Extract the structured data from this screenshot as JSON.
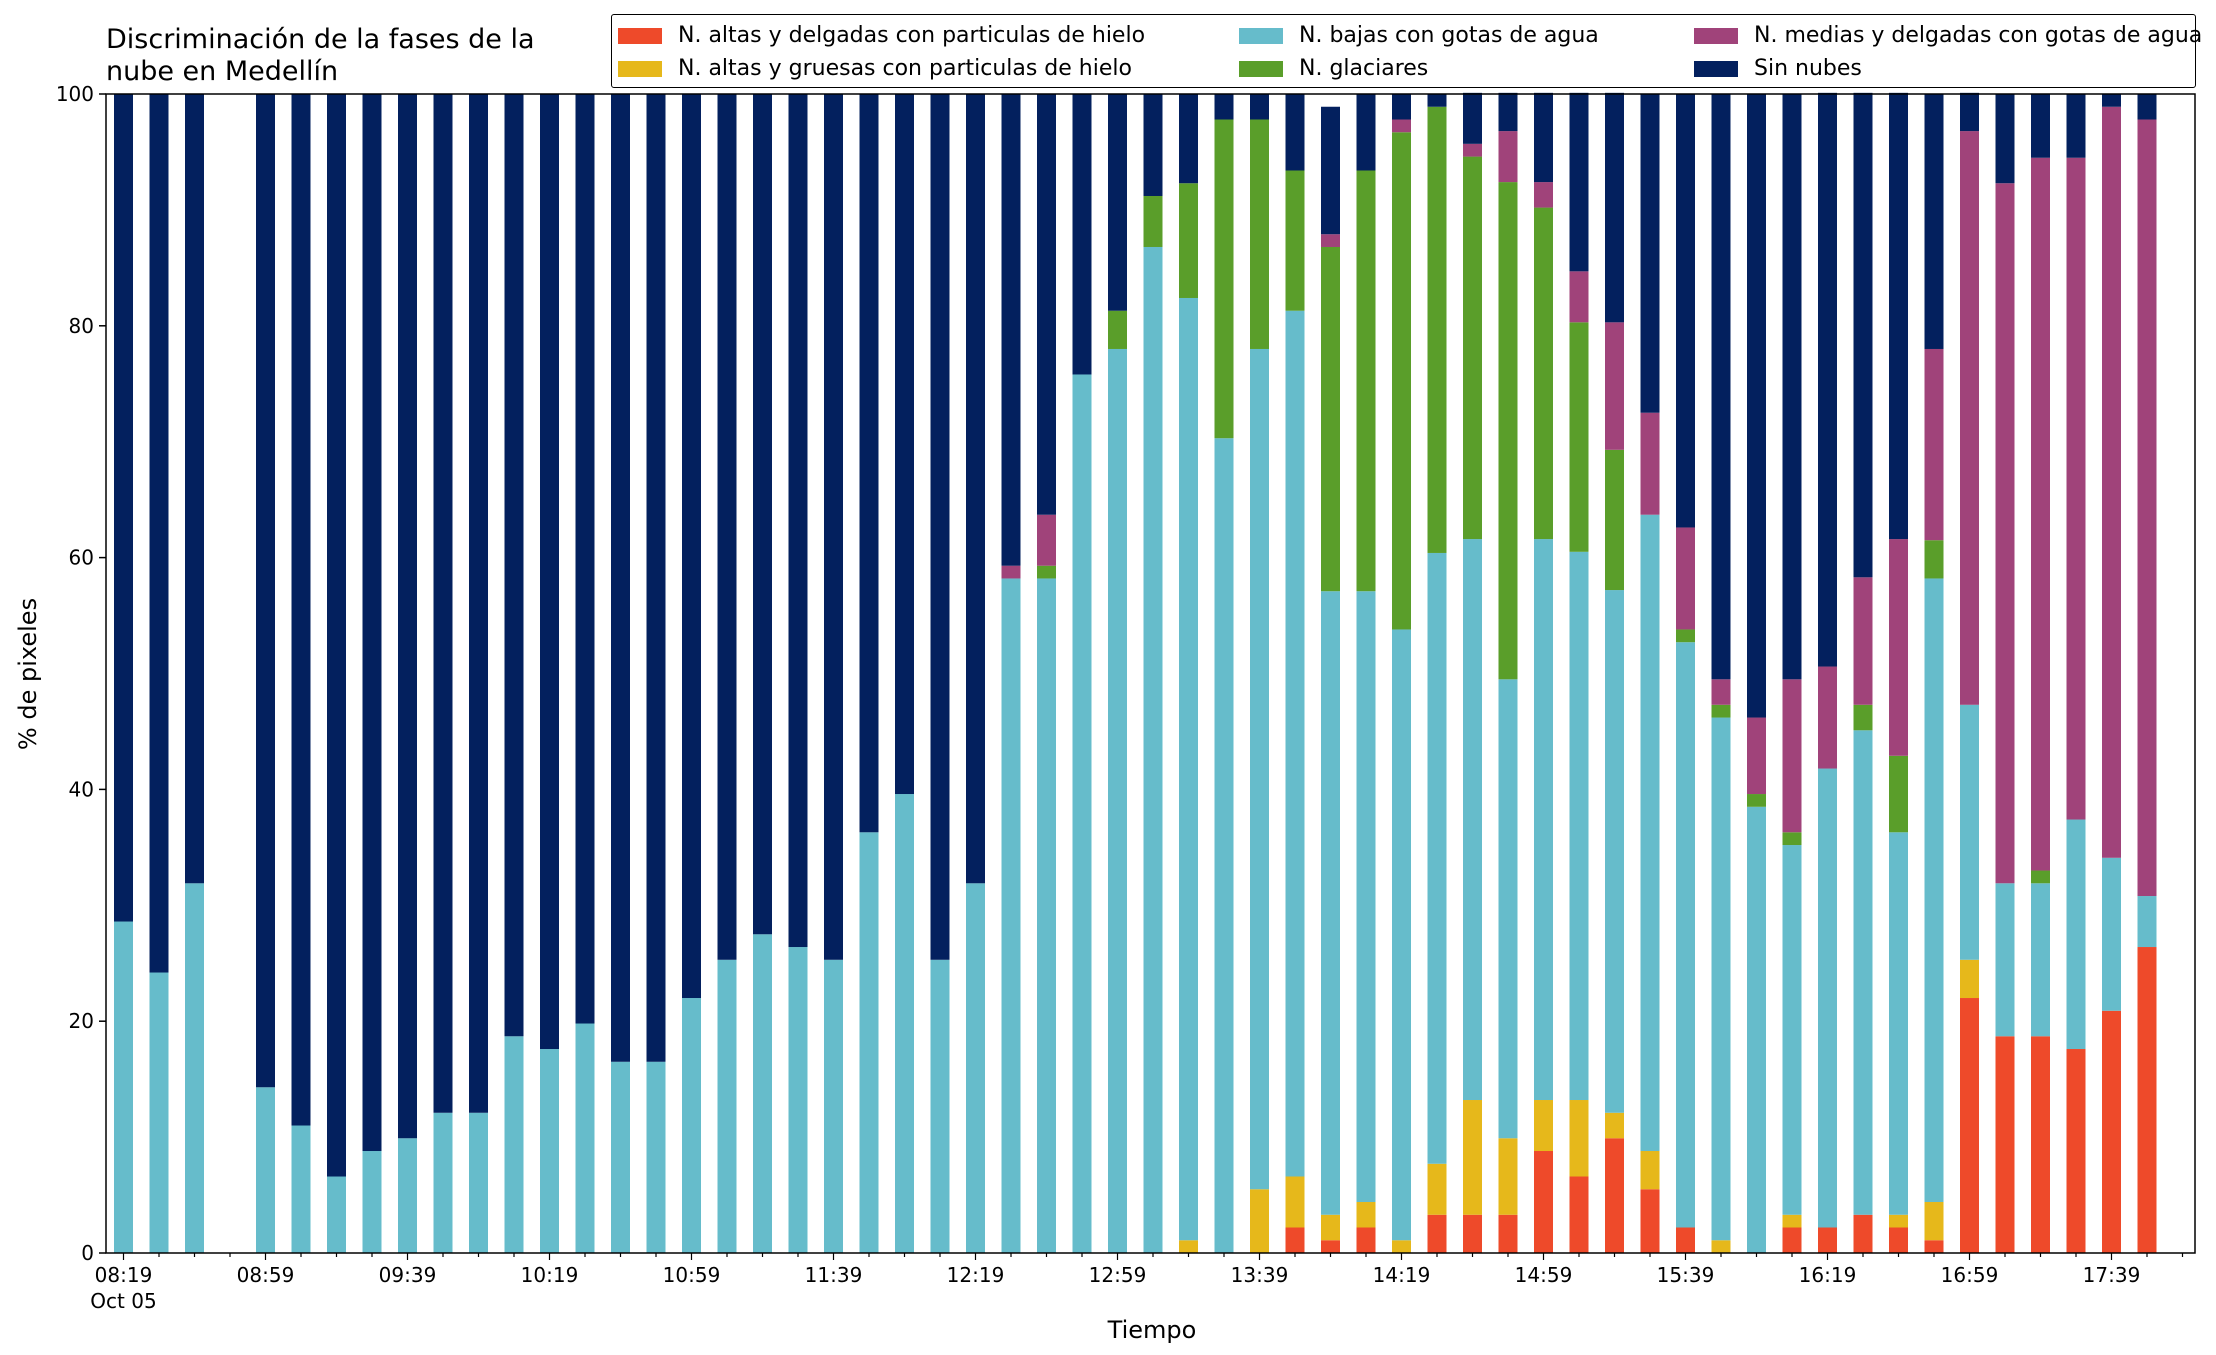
{
  "chart_data": {
    "type": "bar",
    "stacked": true,
    "title_line1": "Discriminación de la fases de la",
    "title_line2": "nube en Medellín",
    "xlabel": "Tiempo",
    "ylabel": "% de pixeles",
    "ylim": [
      0,
      100
    ],
    "yticks": [
      "0",
      "20",
      "40",
      "60",
      "80",
      "100"
    ],
    "xtick_labels": [
      "08:19",
      "08:59",
      "09:39",
      "10:19",
      "10:59",
      "11:39",
      "12:19",
      "12:59",
      "13:39",
      "14:19",
      "14:59",
      "15:39",
      "16:19",
      "16:59",
      "17:39"
    ],
    "xtick_sublabel": "Oct 05",
    "grid": false,
    "legend_position": "top-right",
    "categories": [
      "08:19",
      "08:29",
      "08:39",
      "08:49",
      "08:59",
      "09:09",
      "09:19",
      "09:29",
      "09:39",
      "09:49",
      "09:59",
      "10:09",
      "10:19",
      "10:29",
      "10:39",
      "10:49",
      "10:59",
      "11:09",
      "11:19",
      "11:29",
      "11:39",
      "11:49",
      "11:59",
      "12:09",
      "12:19",
      "12:29",
      "12:39",
      "12:49",
      "12:59",
      "13:09",
      "13:19",
      "13:29",
      "13:39",
      "13:49",
      "13:59",
      "14:09",
      "14:19",
      "14:29",
      "14:39",
      "14:49",
      "14:59",
      "15:09",
      "15:19",
      "15:29",
      "15:39",
      "15:49",
      "15:59",
      "16:09",
      "16:19",
      "16:29",
      "16:39",
      "16:49",
      "16:59",
      "17:09",
      "17:19",
      "17:29",
      "17:39",
      "17:49"
    ],
    "series": [
      {
        "name": "N. altas y delgadas con particulas de hielo",
        "color": "#ee4a2a",
        "values": [
          0,
          0,
          0,
          0,
          0,
          0,
          0,
          0,
          0,
          0,
          0,
          0,
          0,
          0,
          0,
          0,
          0,
          0,
          0,
          0,
          0,
          0,
          0,
          0,
          0,
          0,
          0,
          0,
          0,
          0,
          0,
          0,
          0,
          2.2,
          1.1,
          2.2,
          0,
          3.3,
          3.3,
          3.3,
          8.8,
          6.6,
          9.9,
          5.5,
          2.2,
          0,
          0,
          2.2,
          2.2,
          3.3,
          2.2,
          1.1,
          22,
          18.7,
          18.7,
          17.6,
          20.9,
          26.4
        ]
      },
      {
        "name": "N. altas y gruesas con particulas de hielo",
        "color": "#e6b81b",
        "values": [
          0,
          0,
          0,
          0,
          0,
          0,
          0,
          0,
          0,
          0,
          0,
          0,
          0,
          0,
          0,
          0,
          0,
          0,
          0,
          0,
          0,
          0,
          0,
          0,
          0,
          0,
          0,
          0,
          0,
          0,
          1.1,
          0,
          5.5,
          4.4,
          2.2,
          2.2,
          1.1,
          4.4,
          9.9,
          6.6,
          4.4,
          6.6,
          2.2,
          3.3,
          0,
          1.1,
          0,
          1.1,
          0,
          0,
          1.1,
          3.3,
          3.3,
          0,
          0,
          0,
          0,
          0
        ]
      },
      {
        "name": "N. bajas con gotas de agua",
        "color": "#66bccb",
        "values": [
          28.6,
          24.2,
          31.9,
          0,
          14.3,
          11,
          6.6,
          8.8,
          9.9,
          12.1,
          12.1,
          18.7,
          17.6,
          19.8,
          16.5,
          16.5,
          22,
          25.3,
          27.5,
          26.4,
          25.3,
          36.3,
          39.6,
          25.3,
          31.9,
          58.2,
          58.2,
          75.8,
          78,
          86.8,
          81.3,
          70.3,
          72.5,
          74.7,
          53.8,
          52.7,
          52.7,
          52.7,
          48.4,
          39.6,
          48.4,
          47.3,
          45.1,
          54.9,
          50.5,
          45.1,
          38.5,
          31.9,
          39.6,
          41.8,
          33,
          53.8,
          22,
          13.2,
          13.2,
          19.8,
          13.2,
          4.4
        ]
      },
      {
        "name": "N. glaciares",
        "color": "#5a9e2a",
        "values": [
          0,
          0,
          0,
          0,
          0,
          0,
          0,
          0,
          0,
          0,
          0,
          0,
          0,
          0,
          0,
          0,
          0,
          0,
          0,
          0,
          0,
          0,
          0,
          0,
          0,
          0,
          1.1,
          0,
          3.3,
          4.4,
          9.9,
          27.5,
          19.8,
          12.1,
          29.7,
          36.3,
          42.9,
          38.5,
          33,
          42.9,
          28.6,
          19.8,
          12.1,
          0,
          1.1,
          1.1,
          1.1,
          1.1,
          0,
          2.2,
          6.6,
          3.3,
          0,
          0,
          1.1,
          0,
          0,
          0
        ]
      },
      {
        "name": "N. medias y delgadas con gotas de agua",
        "color": "#a0437a",
        "values": [
          0,
          0,
          0,
          0,
          0,
          0,
          0,
          0,
          0,
          0,
          0,
          0,
          0,
          0,
          0,
          0,
          0,
          0,
          0,
          0,
          0,
          0,
          0,
          0,
          0,
          1.1,
          4.4,
          0,
          0,
          0,
          0,
          0,
          0,
          0,
          1.1,
          0,
          1.1,
          0,
          1.1,
          4.4,
          2.2,
          4.4,
          11,
          8.8,
          8.8,
          2.2,
          6.6,
          13.2,
          8.8,
          11,
          18.7,
          16.5,
          49.5,
          60.4,
          61.5,
          57.1,
          64.8,
          67
        ]
      },
      {
        "name": "Sin nubes",
        "color": "#03205e",
        "values": [
          71.4,
          75.8,
          68.1,
          0,
          85.7,
          89,
          93.4,
          91.2,
          90.1,
          87.9,
          87.9,
          81.3,
          82.4,
          80.2,
          83.5,
          83.5,
          78,
          74.7,
          72.5,
          73.6,
          74.7,
          63.7,
          60.4,
          74.7,
          68.1,
          40.7,
          36.3,
          24.2,
          18.7,
          8.8,
          7.7,
          2.2,
          2.2,
          6.6,
          11,
          6.6,
          2.2,
          1.1,
          4.4,
          3.3,
          7.7,
          15.4,
          19.8,
          27.5,
          37.4,
          50.5,
          53.8,
          50.5,
          49.5,
          41.8,
          38.5,
          22,
          3.3,
          7.7,
          5.5,
          5.5,
          1.1,
          2.2
        ]
      }
    ]
  }
}
